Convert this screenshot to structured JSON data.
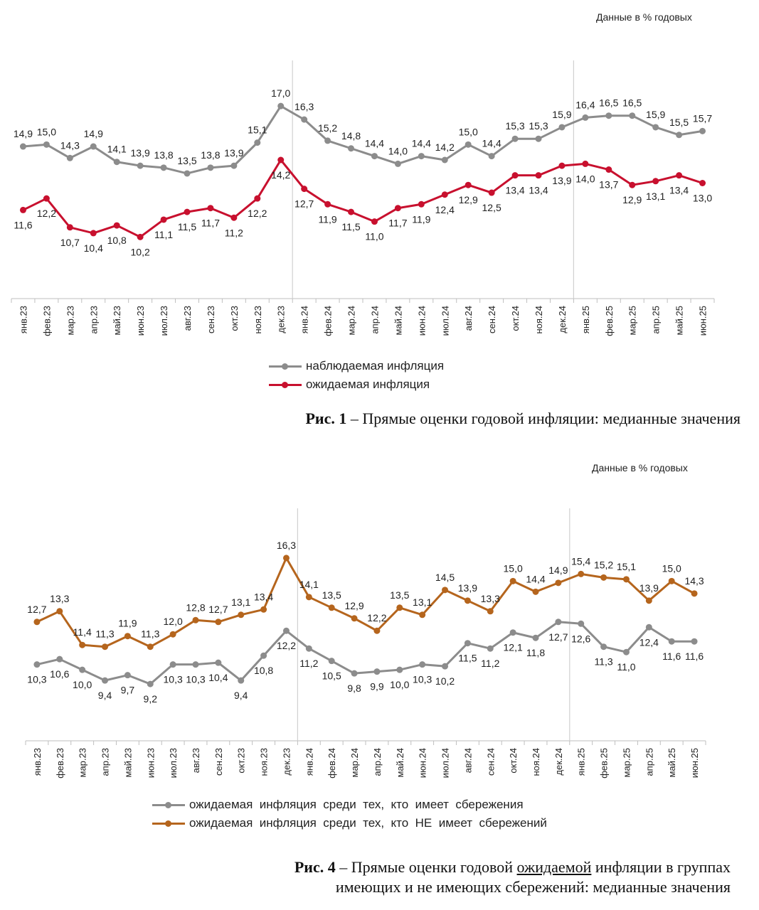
{
  "chart_data": [
    {
      "type": "line",
      "units_note": "Данные в % годовых",
      "caption": {
        "prefix": "Рис. 1",
        "text": " – Прямые оценки годовой инфляции: медианные значения"
      },
      "categories": [
        "янв.23",
        "фев.23",
        "мар.23",
        "апр.23",
        "май.23",
        "июн.23",
        "июл.23",
        "авг.23",
        "сен.23",
        "окт.23",
        "ноя.23",
        "дек.23",
        "янв.24",
        "фев.24",
        "мар.24",
        "апр.24",
        "май.24",
        "июн.24",
        "июл.24",
        "авг.24",
        "сен.24",
        "окт.24",
        "ноя.24",
        "дек.24",
        "янв.25",
        "фев.25",
        "мар.25",
        "апр.25",
        "май.25",
        "июн.25"
      ],
      "ylim": [
        7,
        19
      ],
      "separators_after": [
        "дек.23",
        "дек.24"
      ],
      "series": [
        {
          "name": "наблюдаемая инфляция",
          "color": "#8c8c8c",
          "values": [
            14.9,
            15.0,
            14.3,
            14.9,
            14.1,
            13.9,
            13.8,
            13.5,
            13.8,
            13.9,
            15.1,
            17.0,
            16.3,
            15.2,
            14.8,
            14.4,
            14.0,
            14.4,
            14.2,
            15.0,
            14.4,
            15.3,
            15.3,
            15.9,
            16.4,
            16.5,
            16.5,
            15.9,
            15.5,
            15.7
          ],
          "labels": [
            "14,9",
            "15,0",
            "14,3",
            "14,9",
            "14,1",
            "13,9",
            "13,8",
            "13,5",
            "13,8",
            "13,9",
            "15,1",
            "17,0",
            "16,3",
            "15,2",
            "14,8",
            "14,4",
            "14,0",
            "14,4",
            "14,2",
            "15,0",
            "14,4",
            "15,3",
            "15,3",
            "15,9",
            "16,4",
            "16,5",
            "16,5",
            "15,9",
            "15,5",
            "15,7"
          ]
        },
        {
          "name": "ожидаемая инфляция",
          "color": "#c8102e",
          "values": [
            11.6,
            12.2,
            10.7,
            10.4,
            10.8,
            10.2,
            11.1,
            11.5,
            11.7,
            11.2,
            12.2,
            14.2,
            12.7,
            11.9,
            11.5,
            11.0,
            11.7,
            11.9,
            12.4,
            12.9,
            12.5,
            13.4,
            13.4,
            13.9,
            14.0,
            13.7,
            12.9,
            13.1,
            13.4,
            13.0
          ],
          "labels": [
            "11,6",
            "12,2",
            "10,7",
            "10,4",
            "10,8",
            "10,2",
            "11,1",
            "11,5",
            "11,7",
            "11,2",
            "12,2",
            "14,2",
            "12,7",
            "11,9",
            "11,5",
            "11,0",
            "11,7",
            "11,9",
            "12,4",
            "12,9",
            "12,5",
            "13,4",
            "13,4",
            "13,9",
            "14,0",
            "13,7",
            "12,9",
            "13,1",
            "13,4",
            "13,0"
          ]
        }
      ]
    },
    {
      "type": "line",
      "units_note": "Данные в % годовых",
      "caption": {
        "prefix": "Рис. 4",
        "text1": " – Прямые оценки годовой ",
        "underlined": "ожидаемой",
        "text2": " инфляции в группах",
        "line2": "имеющих и не имеющих сбережений: медианные значения"
      },
      "categories": [
        "янв.23",
        "фев.23",
        "мар.23",
        "апр.23",
        "май.23",
        "июн.23",
        "июл.23",
        "авг.23",
        "сен.23",
        "окт.23",
        "ноя.23",
        "дек.23",
        "янв.24",
        "фев.24",
        "мар.24",
        "апр.24",
        "май.24",
        "июн.24",
        "июл.24",
        "авг.24",
        "сен.24",
        "окт.24",
        "ноя.24",
        "дек.24",
        "янв.25",
        "фев.25",
        "мар.25",
        "апр.25",
        "май.25",
        "июн.25"
      ],
      "ylim": [
        6,
        18.5
      ],
      "separators_after": [
        "дек.23",
        "дек.24"
      ],
      "series": [
        {
          "name": "ожидаемая  инфляция  среди  тех,  кто  имеет  сбережения",
          "color": "#8c8c8c",
          "values": [
            10.3,
            10.6,
            10.0,
            9.4,
            9.7,
            9.2,
            10.3,
            10.3,
            10.4,
            9.4,
            10.8,
            12.2,
            11.2,
            10.5,
            9.8,
            9.9,
            10.0,
            10.3,
            10.2,
            11.5,
            11.2,
            12.1,
            11.8,
            12.7,
            12.6,
            11.3,
            11.0,
            12.4,
            11.6,
            11.6
          ],
          "labels": [
            "10,3",
            "10,6",
            "10,0",
            "9,4",
            "9,7",
            "9,2",
            "10,3",
            "10,3",
            "10,4",
            "9,4",
            "10,8",
            "12,2",
            "11,2",
            "10,5",
            "9,8",
            "9,9",
            "10,0",
            "10,3",
            "10,2",
            "11,5",
            "11,2",
            "12,1",
            "11,8",
            "12,7",
            "12,6",
            "11,3",
            "11,0",
            "12,4",
            "11,6",
            "11,6"
          ]
        },
        {
          "name": "ожидаемая  инфляция  среди  тех,  кто  НЕ  имеет  сбережений",
          "color": "#b5651d",
          "values": [
            12.7,
            13.3,
            11.4,
            11.3,
            11.9,
            11.3,
            12.0,
            12.8,
            12.7,
            13.1,
            13.4,
            16.3,
            14.1,
            13.5,
            12.9,
            12.2,
            13.5,
            13.1,
            14.5,
            13.9,
            13.3,
            15.0,
            14.4,
            14.9,
            15.4,
            15.2,
            15.1,
            13.9,
            15.0,
            14.3
          ],
          "labels": [
            "12,7",
            "13,3",
            "11,4",
            "11,3",
            "11,9",
            "11,3",
            "12,0",
            "12,8",
            "12,7",
            "13,1",
            "13,4",
            "16,3",
            "14,1",
            "13,5",
            "12,9",
            "12,2",
            "13,5",
            "13,1",
            "14,5",
            "13,9",
            "13,3",
            "15,0",
            "14,4",
            "14,9",
            "15,4",
            "15,2",
            "15,1",
            "13,9",
            "15,0",
            "14,3"
          ]
        }
      ]
    }
  ]
}
